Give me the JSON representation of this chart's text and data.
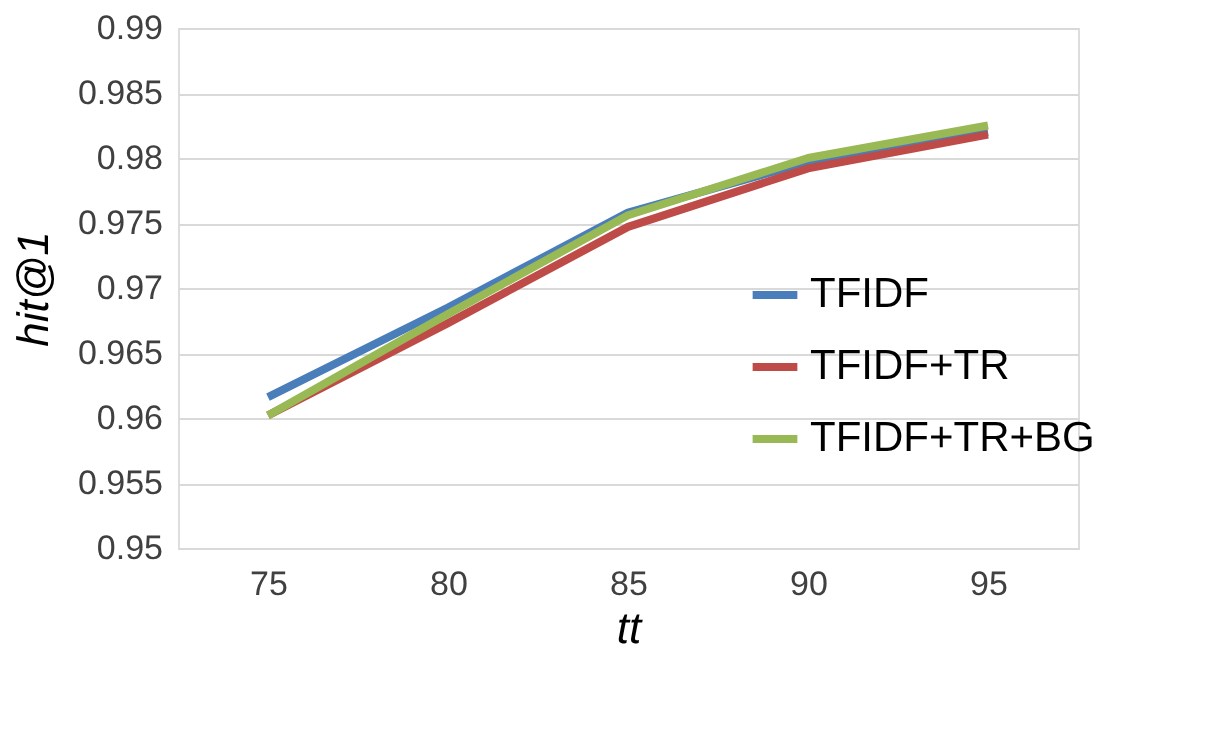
{
  "chart_data": {
    "type": "line",
    "xlabel": "tt",
    "ylabel": "hit@1",
    "categories": [
      "75",
      "80",
      "85",
      "90",
      "95"
    ],
    "series": [
      {
        "name": "TFIDF",
        "color": "#4a7ebb",
        "values": [
          0.9616,
          0.9685,
          0.9758,
          0.9797,
          0.982
        ]
      },
      {
        "name": "TFIDF+TR",
        "color": "#be4b48",
        "values": [
          0.9602,
          0.9673,
          0.9747,
          0.9792,
          0.9818
        ]
      },
      {
        "name": "TFIDF+TR+BG",
        "color": "#98b954",
        "values": [
          0.9602,
          0.968,
          0.9756,
          0.98,
          0.9825
        ]
      }
    ],
    "ylim": [
      0.95,
      0.99
    ],
    "yticks": [
      0.95,
      0.955,
      0.96,
      0.965,
      0.97,
      0.975,
      0.98,
      0.985,
      0.99
    ],
    "grid": "y",
    "legend": "right",
    "marker": "none",
    "line_style": "solid"
  }
}
